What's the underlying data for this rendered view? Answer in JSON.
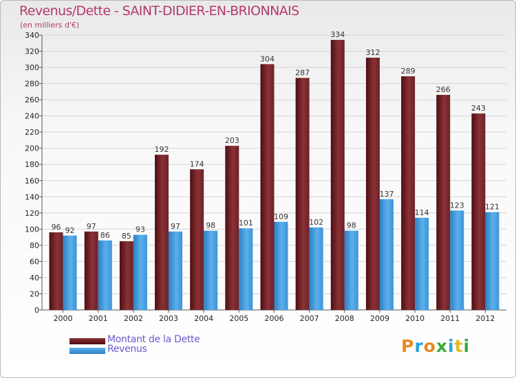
{
  "header": {
    "title": "Revenus/Dette - SAINT-DIDIER-EN-BRIONNAIS",
    "subtitle": "(en milliers d'€)"
  },
  "legend": {
    "items": [
      {
        "label": "Montant de la Dette",
        "color": "#6b1f24"
      },
      {
        "label": "Revenus",
        "color": "#3d9be0"
      }
    ]
  },
  "logo": {
    "letters": [
      {
        "ch": "P",
        "color": "#e68a1e"
      },
      {
        "ch": "r",
        "color": "#2aa3d9"
      },
      {
        "ch": "o",
        "color": "#e68a1e"
      },
      {
        "ch": "x",
        "color": "#3aaa3a"
      },
      {
        "ch": "i",
        "color": "#2aa3d9"
      },
      {
        "ch": "t",
        "color": "#e6b81e"
      },
      {
        "ch": "i",
        "color": "#3aaa3a"
      }
    ]
  },
  "chart_data": {
    "type": "bar",
    "title": "Revenus/Dette - SAINT-DIDIER-EN-BRIONNAIS",
    "subtitle": "(en milliers d'€)",
    "categories": [
      "2000",
      "2001",
      "2002",
      "2003",
      "2004",
      "2005",
      "2006",
      "2007",
      "2008",
      "2009",
      "2010",
      "2011",
      "2012"
    ],
    "series": [
      {
        "name": "Montant de la Dette",
        "color": "#7a2a30",
        "values": [
          96,
          97,
          85,
          192,
          174,
          203,
          304,
          287,
          334,
          312,
          289,
          266,
          243
        ]
      },
      {
        "name": "Revenus",
        "color": "#3d9be0",
        "values": [
          92,
          86,
          93,
          97,
          98,
          101,
          109,
          102,
          98,
          137,
          114,
          123,
          121
        ]
      }
    ],
    "ylim": [
      0,
      340
    ],
    "ytick_step": 20,
    "grid": true,
    "legend_position": "bottom-left"
  }
}
